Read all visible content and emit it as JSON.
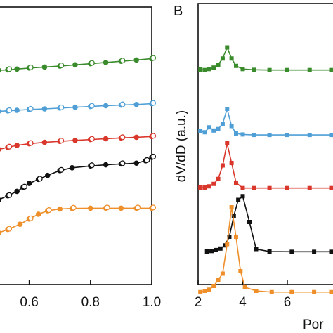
{
  "figure": {
    "panel_b_label": "B"
  },
  "colors": {
    "green": "#3a8b2c",
    "blue": "#4f9fd6",
    "red": "#d9372b",
    "black": "#111111",
    "orange": "#ee8f2a"
  },
  "chart_data": [
    {
      "type": "line",
      "xlabel": "",
      "ylabel": "",
      "xlim": [
        0.5,
        1.0
      ],
      "xticks": [
        0.6,
        0.8,
        1.0
      ],
      "xtick_labels": [
        "0.6",
        "0.8",
        "1.0"
      ],
      "ylim": [
        0,
        1
      ],
      "grid": false,
      "series": [
        {
          "color": "green",
          "x": [
            0.5,
            0.53,
            0.56,
            0.6,
            0.65,
            0.7,
            0.75,
            0.8,
            0.85,
            0.9,
            0.95,
            1.0
          ],
          "y": [
            0.807,
            0.809,
            0.813,
            0.818,
            0.823,
            0.828,
            0.834,
            0.84,
            0.846,
            0.852,
            0.858,
            0.865
          ]
        },
        {
          "color": "blue",
          "x": [
            0.5,
            0.53,
            0.56,
            0.6,
            0.65,
            0.7,
            0.75,
            0.8,
            0.85,
            0.9,
            0.95,
            1.0
          ],
          "y": [
            0.602,
            0.604,
            0.607,
            0.611,
            0.614,
            0.618,
            0.622,
            0.626,
            0.63,
            0.633,
            0.636,
            0.64
          ]
        },
        {
          "color": "red",
          "x": [
            0.5,
            0.53,
            0.56,
            0.6,
            0.65,
            0.7,
            0.75,
            0.8,
            0.85,
            0.9,
            0.95,
            1.0
          ],
          "y": [
            0.412,
            0.422,
            0.432,
            0.44,
            0.447,
            0.452,
            0.457,
            0.461,
            0.465,
            0.469,
            0.472,
            0.476
          ]
        },
        {
          "color": "black",
          "x": [
            0.5,
            0.53,
            0.56,
            0.58,
            0.6,
            0.63,
            0.66,
            0.7,
            0.74,
            0.8,
            0.85,
            0.9,
            0.95,
            0.98,
            1.0
          ],
          "y": [
            0.16,
            0.18,
            0.202,
            0.222,
            0.242,
            0.262,
            0.282,
            0.306,
            0.32,
            0.329,
            0.335,
            0.339,
            0.343,
            0.355,
            0.372
          ]
        },
        {
          "color": "orange",
          "x": [
            0.5,
            0.53,
            0.57,
            0.6,
            0.63,
            0.66,
            0.7,
            0.74,
            0.8,
            0.85,
            0.9,
            0.95,
            1.0
          ],
          "y": [
            -0.005,
            0.012,
            0.038,
            0.064,
            0.088,
            0.105,
            0.114,
            0.117,
            0.118,
            0.118,
            0.118,
            0.118,
            0.118
          ]
        }
      ]
    },
    {
      "type": "line",
      "xlabel": "Por",
      "ylabel": "dV/dD (a.u.)",
      "xlim": [
        2,
        8.3
      ],
      "xticks": [
        2,
        4,
        6
      ],
      "xtick_labels": [
        "2",
        "4",
        "6"
      ],
      "grid": false,
      "series": [
        {
          "color": "green",
          "x": [
            2.1,
            2.3,
            2.5,
            2.7,
            2.9,
            3.1,
            3.3,
            3.5,
            3.7,
            4.0,
            4.5,
            5.2,
            6.0,
            7.0,
            8.0
          ],
          "y": [
            0.86,
            0.858,
            0.862,
            0.868,
            0.88,
            0.905,
            0.95,
            0.905,
            0.875,
            0.862,
            0.859,
            0.858,
            0.858,
            0.858,
            0.858
          ]
        },
        {
          "color": "blue",
          "x": [
            2.1,
            2.3,
            2.5,
            2.7,
            2.9,
            3.1,
            3.3,
            3.5,
            3.7,
            4.0,
            4.5,
            5.2,
            6.0,
            7.0,
            8.0
          ],
          "y": [
            0.61,
            0.605,
            0.625,
            0.612,
            0.618,
            0.64,
            0.7,
            0.63,
            0.6,
            0.596,
            0.594,
            0.594,
            0.594,
            0.594,
            0.594
          ]
        },
        {
          "color": "red",
          "x": [
            2.1,
            2.3,
            2.5,
            2.7,
            2.9,
            3.1,
            3.3,
            3.5,
            3.7,
            4.0,
            4.5,
            5.2,
            6.0,
            7.0,
            8.0
          ],
          "y": [
            0.38,
            0.38,
            0.385,
            0.395,
            0.415,
            0.47,
            0.56,
            0.48,
            0.4,
            0.378,
            0.378,
            0.378,
            0.378,
            0.378,
            0.378
          ]
        },
        {
          "color": "black",
          "x": [
            2.4,
            2.6,
            2.8,
            3.0,
            3.2,
            3.4,
            3.6,
            3.8,
            4.0,
            4.3,
            4.6,
            5.2,
            6.2,
            7.2,
            8.0
          ],
          "y": [
            0.12,
            0.122,
            0.126,
            0.132,
            0.145,
            0.18,
            0.265,
            0.33,
            0.345,
            0.24,
            0.13,
            0.12,
            0.119,
            0.119,
            0.119
          ]
        },
        {
          "color": "orange",
          "x": [
            2.1,
            2.3,
            2.5,
            2.7,
            2.9,
            3.1,
            3.3,
            3.5,
            3.7,
            3.9,
            4.1,
            4.6,
            5.3,
            6.2,
            7.2,
            8.0
          ],
          "y": [
            -0.045,
            -0.04,
            -0.035,
            -0.02,
            0.005,
            0.03,
            0.15,
            0.3,
            0.18,
            0.04,
            -0.025,
            -0.04,
            -0.045,
            -0.045,
            -0.045,
            -0.045
          ]
        }
      ]
    }
  ]
}
